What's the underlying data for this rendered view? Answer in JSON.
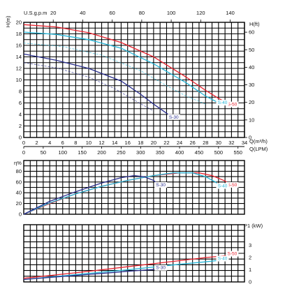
{
  "colors": {
    "grid": "#000000",
    "s50": "#e8222e",
    "s40": "#25b6d8",
    "s30": "#2a2f8e",
    "label_bg": "#ffffff"
  },
  "labels": {
    "top_axis": "U.S.g.p.m",
    "h_left": "H(m)",
    "h_right": "H(ft)",
    "q_m3h": "Q(m³/h)",
    "q_lpm": "Q(LPM)",
    "eta": "η%",
    "p1": "P1 (kW)"
  },
  "chart_data": [
    {
      "type": "line",
      "panel": "head",
      "xlabel": "Q(m³/h)",
      "ylabel": "H(m)",
      "y2label": "H(ft)",
      "top_axis_label": "U.S.g.p.m",
      "top_axis_ticks": [
        "20",
        "40",
        "60",
        "80",
        "100",
        "120",
        "140"
      ],
      "bottom_axis_label": "Q(LPM)",
      "lpm_ticks": [
        "0",
        "50",
        "100",
        "150",
        "200",
        "250",
        "300",
        "350",
        "400",
        "450",
        "500",
        "550"
      ],
      "x_ticks": [
        "0",
        "2",
        "4",
        "6",
        "8",
        "10",
        "12",
        "14",
        "16",
        "18",
        "20",
        "22",
        "24",
        "26",
        "28",
        "30",
        "32",
        "34"
      ],
      "y_ticks": [
        "0",
        "2",
        "4",
        "6",
        "8",
        "10",
        "12",
        "14",
        "16",
        "18",
        "20"
      ],
      "y2_ticks": [
        "0",
        "10",
        "20",
        "30",
        "40",
        "50",
        "60"
      ],
      "xlim": [
        0,
        34
      ],
      "ylim": [
        0,
        20
      ],
      "grid": true,
      "series": [
        {
          "name": "S-50",
          "color": "#e8222e",
          "x": [
            0,
            5,
            10,
            15,
            20,
            25,
            28,
            30,
            31,
            32
          ],
          "y": [
            19.6,
            19.2,
            18.2,
            16.5,
            14.0,
            10.5,
            8.2,
            6.8,
            6.2,
            5.5
          ]
        },
        {
          "name": "S-40",
          "color": "#25b6d8",
          "x": [
            0,
            5,
            10,
            15,
            20,
            25,
            28,
            29.5,
            30.5
          ],
          "y": [
            18.3,
            17.9,
            17.0,
            15.5,
            12.8,
            9.5,
            7.2,
            6.3,
            5.8
          ]
        },
        {
          "name": "S-30",
          "color": "#2a2f8e",
          "x": [
            0,
            5,
            10,
            15,
            18,
            20,
            22,
            23
          ],
          "y": [
            14.5,
            13.4,
            12.0,
            9.8,
            7.5,
            5.8,
            4.2,
            3.3
          ]
        }
      ],
      "ghost_series": [
        {
          "color": "#25b6d8",
          "x": [
            0,
            6,
            12,
            18,
            22,
            25,
            28
          ],
          "y": [
            16.4,
            15.8,
            14.3,
            11.6,
            9.0,
            7.2,
            5.8
          ]
        },
        {
          "color": "#2a2f8e",
          "x": [
            0,
            5,
            10,
            14,
            17,
            20
          ],
          "y": [
            13.0,
            12.1,
            10.5,
            8.5,
            6.5,
            4.6
          ]
        }
      ]
    },
    {
      "type": "line",
      "panel": "efficiency",
      "ylabel": "η%",
      "y_ticks": [
        "0",
        "20",
        "40",
        "60",
        "80"
      ],
      "xlim": [
        0,
        34
      ],
      "ylim": [
        0,
        100
      ],
      "grid": true,
      "series": [
        {
          "name": "S-50",
          "color": "#e8222e",
          "x": [
            0,
            4,
            8,
            12,
            16,
            20,
            24,
            27,
            29,
            31,
            32
          ],
          "y": [
            0,
            20,
            38,
            52,
            63,
            72,
            77,
            77,
            72,
            62,
            52
          ]
        },
        {
          "name": "S-40",
          "color": "#25b6d8",
          "x": [
            0,
            4,
            8,
            12,
            16,
            20,
            23,
            26,
            28,
            29.5,
            30.5
          ],
          "y": [
            0,
            21,
            38,
            52,
            63,
            72,
            77,
            77,
            70,
            60,
            50
          ]
        },
        {
          "name": "S-30",
          "color": "#2a2f8e",
          "x": [
            0,
            4,
            8,
            12,
            15,
            17,
            18.5,
            20,
            21
          ],
          "y": [
            0,
            24,
            42,
            58,
            68,
            72,
            70,
            63,
            52
          ]
        }
      ]
    },
    {
      "type": "line",
      "panel": "power",
      "ylabel": "P1 (kW)",
      "y_ticks": [
        "0",
        "1",
        "2",
        "3"
      ],
      "xlim": [
        0,
        34
      ],
      "ylim": [
        0,
        4.7
      ],
      "grid": true,
      "series": [
        {
          "name": "S-50",
          "color": "#e8222e",
          "x": [
            0,
            8,
            16,
            24,
            28,
            32
          ],
          "y": [
            0.3,
            0.75,
            1.25,
            1.75,
            2.0,
            2.2
          ]
        },
        {
          "name": "S-40",
          "color": "#25b6d8",
          "x": [
            0,
            8,
            16,
            24,
            28,
            30.5
          ],
          "y": [
            0.2,
            0.6,
            1.0,
            1.45,
            1.65,
            1.8
          ]
        },
        {
          "name": "S-30",
          "color": "#2a2f8e",
          "x": [
            0,
            6,
            12,
            18,
            21
          ],
          "y": [
            0.2,
            0.45,
            0.7,
            0.95,
            1.05
          ]
        }
      ]
    }
  ]
}
